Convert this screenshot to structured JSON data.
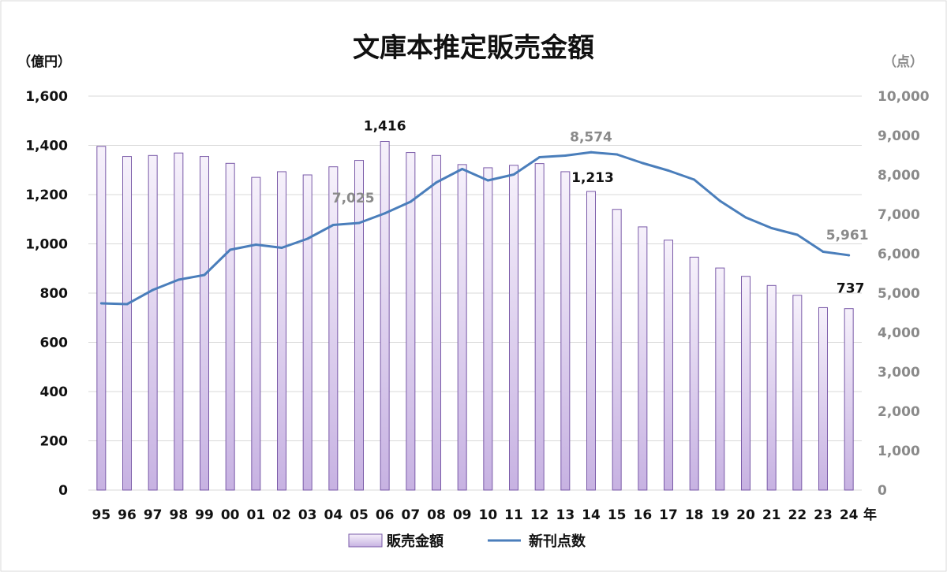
{
  "chart_data": {
    "type": "bar",
    "title": "文庫本推定販売金額",
    "x_unit": "年",
    "left_axis": {
      "unit": "（億円）",
      "ylim": [
        0,
        1600
      ],
      "ticks": [
        "0",
        "200",
        "400",
        "600",
        "800",
        "1,000",
        "1,200",
        "1,400",
        "1,600"
      ]
    },
    "right_axis": {
      "unit": "（点）",
      "ylim": [
        0,
        10000
      ],
      "ticks": [
        "0",
        "1,000",
        "2,000",
        "3,000",
        "4,000",
        "5,000",
        "6,000",
        "7,000",
        "8,000",
        "9,000",
        "10,000"
      ]
    },
    "categories": [
      "95",
      "96",
      "97",
      "98",
      "99",
      "00",
      "01",
      "02",
      "03",
      "04",
      "05",
      "06",
      "07",
      "08",
      "09",
      "10",
      "11",
      "12",
      "13",
      "14",
      "15",
      "16",
      "17",
      "18",
      "19",
      "20",
      "21",
      "22",
      "23",
      "24"
    ],
    "series": [
      {
        "name": "販売金額",
        "type": "bar",
        "axis": "left",
        "color": "#c9b6e4",
        "values": [
          1396,
          1355,
          1359,
          1369,
          1355,
          1327,
          1270,
          1293,
          1280,
          1313,
          1339,
          1416,
          1371,
          1359,
          1322,
          1309,
          1319,
          1326,
          1293,
          1213,
          1140,
          1069,
          1015,
          946,
          902,
          868,
          831,
          791,
          741,
          737
        ]
      },
      {
        "name": "新刊点数",
        "type": "line",
        "axis": "right",
        "color": "#4a7ebb",
        "values": [
          4740,
          4720,
          5080,
          5340,
          5460,
          6100,
          6230,
          6150,
          6380,
          6730,
          6780,
          7025,
          7320,
          7810,
          8150,
          7860,
          8010,
          8450,
          8490,
          8574,
          8520,
          8300,
          8110,
          7880,
          7340,
          6920,
          6650,
          6480,
          6050,
          5961
        ]
      }
    ],
    "annotations": [
      {
        "series": "販売金額",
        "category": "06",
        "text": "1,416"
      },
      {
        "series": "販売金額",
        "category": "14",
        "text": "1,213"
      },
      {
        "series": "販売金額",
        "category": "24",
        "text": "737"
      },
      {
        "series": "新刊点数",
        "category": "06",
        "text": "7,025"
      },
      {
        "series": "新刊点数",
        "category": "14",
        "text": "8,574"
      },
      {
        "series": "新刊点数",
        "category": "24",
        "text": "5,961"
      }
    ],
    "grid": true,
    "legend": "bottom"
  }
}
